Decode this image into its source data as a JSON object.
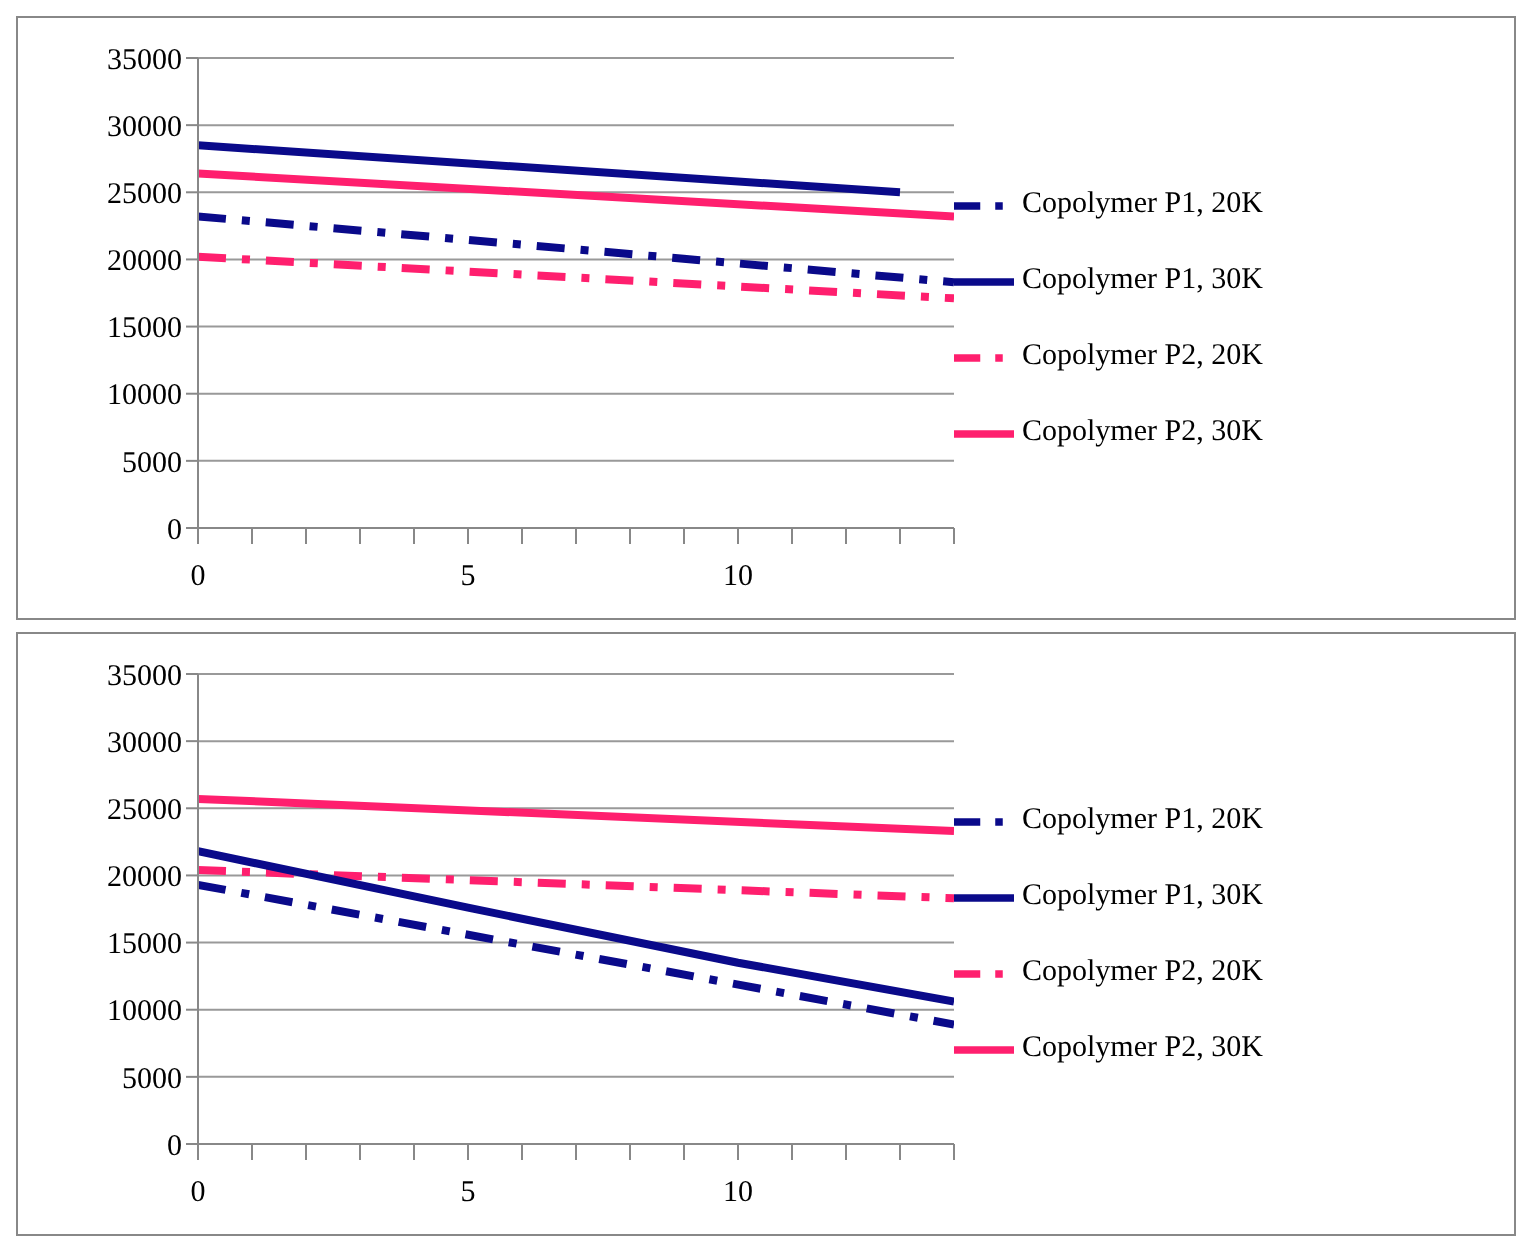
{
  "chart_data": [
    {
      "type": "line",
      "xlim": [
        0,
        14
      ],
      "xticks": [
        0,
        {
          "value": 1,
          "label": null
        },
        {
          "value": 2,
          "label": null
        },
        {
          "value": 3,
          "label": null
        },
        {
          "value": 4,
          "label": null
        },
        5,
        {
          "value": 6,
          "label": null
        },
        {
          "value": 7,
          "label": null
        },
        {
          "value": 8,
          "label": null
        },
        {
          "value": 9,
          "label": null
        },
        10,
        {
          "value": 11,
          "label": null
        },
        {
          "value": 12,
          "label": null
        },
        {
          "value": 13,
          "label": null
        },
        {
          "value": 14,
          "label": null
        }
      ],
      "ylim": [
        0,
        35000
      ],
      "yticks": [
        0,
        5000,
        10000,
        15000,
        20000,
        25000,
        30000,
        35000
      ],
      "grid": "y",
      "legend": "right",
      "marker": "none",
      "series": [
        {
          "name": "Copolymer P2, 20K",
          "color": "#ff1f6e",
          "line_style": "dashed",
          "x": [
            0,
            14
          ],
          "values": [
            20200,
            17100
          ]
        },
        {
          "name": "Copolymer P1, 20K",
          "color": "#0a0a8a",
          "line_style": "dashed",
          "x": [
            0,
            14
          ],
          "values": [
            23200,
            18300
          ]
        },
        {
          "name": "Copolymer P2, 30K",
          "color": "#ff1f6e",
          "line_style": "solid",
          "x": [
            0,
            14
          ],
          "values": [
            26400,
            23200
          ]
        },
        {
          "name": "Copolymer P1, 30K",
          "color": "#0a0a8a",
          "line_style": "solid",
          "x": [
            0,
            13
          ],
          "values": [
            28500,
            25000
          ]
        }
      ]
    },
    {
      "type": "line",
      "xlim": [
        0,
        14
      ],
      "xticks": [
        0,
        {
          "value": 1,
          "label": null
        },
        {
          "value": 2,
          "label": null
        },
        {
          "value": 3,
          "label": null
        },
        {
          "value": 4,
          "label": null
        },
        5,
        {
          "value": 6,
          "label": null
        },
        {
          "value": 7,
          "label": null
        },
        {
          "value": 8,
          "label": null
        },
        {
          "value": 9,
          "label": null
        },
        10,
        {
          "value": 11,
          "label": null
        },
        {
          "value": 12,
          "label": null
        },
        {
          "value": 13,
          "label": null
        },
        {
          "value": 14,
          "label": null
        }
      ],
      "ylim": [
        0,
        35000
      ],
      "yticks": [
        0,
        5000,
        10000,
        15000,
        20000,
        25000,
        30000,
        35000
      ],
      "grid": "y",
      "legend": "right",
      "marker": "none",
      "series": [
        {
          "name": "Copolymer P2, 20K",
          "color": "#ff1f6e",
          "line_style": "dashed",
          "x": [
            0,
            14
          ],
          "values": [
            20400,
            18300
          ]
        },
        {
          "name": "Copolymer P1, 20K",
          "color": "#0a0a8a",
          "line_style": "dashed",
          "x": [
            0,
            14
          ],
          "values": [
            19300,
            8900
          ]
        },
        {
          "name": "Copolymer P2, 30K",
          "color": "#ff1f6e",
          "line_style": "solid",
          "x": [
            0,
            14
          ],
          "values": [
            25700,
            23300
          ]
        },
        {
          "name": "Copolymer P1, 30K",
          "color": "#0a0a8a",
          "line_style": "solid",
          "x": [
            0,
            5,
            10,
            14
          ],
          "values": [
            21800,
            17600,
            13500,
            10600
          ]
        }
      ]
    }
  ]
}
